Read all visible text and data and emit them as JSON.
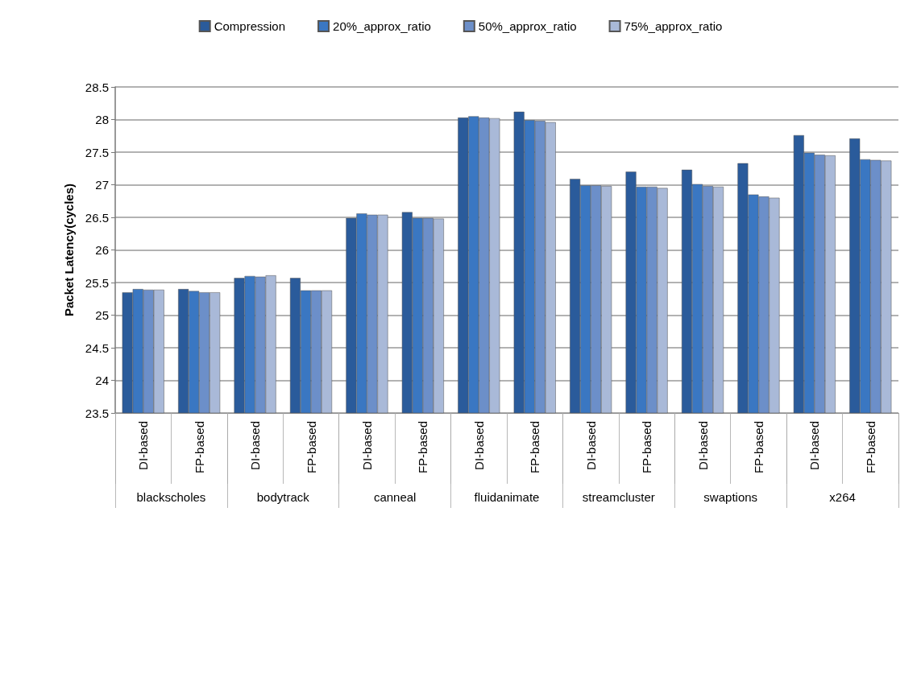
{
  "chart_data": {
    "type": "bar",
    "ylabel": "Packet Latency(cycles)",
    "categories": [
      "DI-based",
      "FP-based",
      "DI-based",
      "FP-based",
      "DI-based",
      "FP-based",
      "DI-based",
      "FP-based",
      "DI-based",
      "FP-based",
      "DI-based",
      "FP-based",
      "DI-based",
      "FP-based"
    ],
    "annotations": [
      "blackscholes",
      "bodytrack",
      "canneal",
      "fluidanimate",
      "streamcluster",
      "swaptions",
      "x264"
    ],
    "series": [
      {
        "name": "Compression",
        "color": "#2a5b9b",
        "values": [
          25.35,
          25.4,
          25.57,
          25.57,
          26.49,
          26.58,
          28.03,
          28.12,
          27.09,
          27.2,
          27.23,
          27.33,
          27.76,
          27.71
        ]
      },
      {
        "name": "20%_approx_ratio",
        "color": "#3a77c2",
        "values": [
          25.4,
          25.37,
          25.6,
          25.38,
          26.56,
          26.49,
          28.05,
          27.99,
          26.99,
          26.97,
          27.01,
          26.85,
          27.49,
          27.39
        ]
      },
      {
        "name": "50%_approx_ratio",
        "color": "#6c8fc9",
        "values": [
          25.39,
          25.35,
          25.59,
          25.38,
          26.54,
          26.49,
          28.03,
          27.98,
          26.99,
          26.97,
          26.98,
          26.82,
          27.46,
          27.38
        ]
      },
      {
        "name": "75%_approx_ratio",
        "color": "#a9b9d8",
        "values": [
          25.39,
          25.35,
          25.61,
          25.38,
          26.54,
          26.48,
          28.02,
          27.96,
          26.98,
          26.95,
          26.97,
          26.8,
          27.45,
          27.37
        ]
      }
    ],
    "ylim": [
      23.5,
      28.5
    ],
    "yticks": [
      23.5,
      24,
      24.5,
      25,
      25.5,
      26,
      26.5,
      27,
      27.5,
      28,
      28.5
    ],
    "grid": "y",
    "legend": "top"
  }
}
